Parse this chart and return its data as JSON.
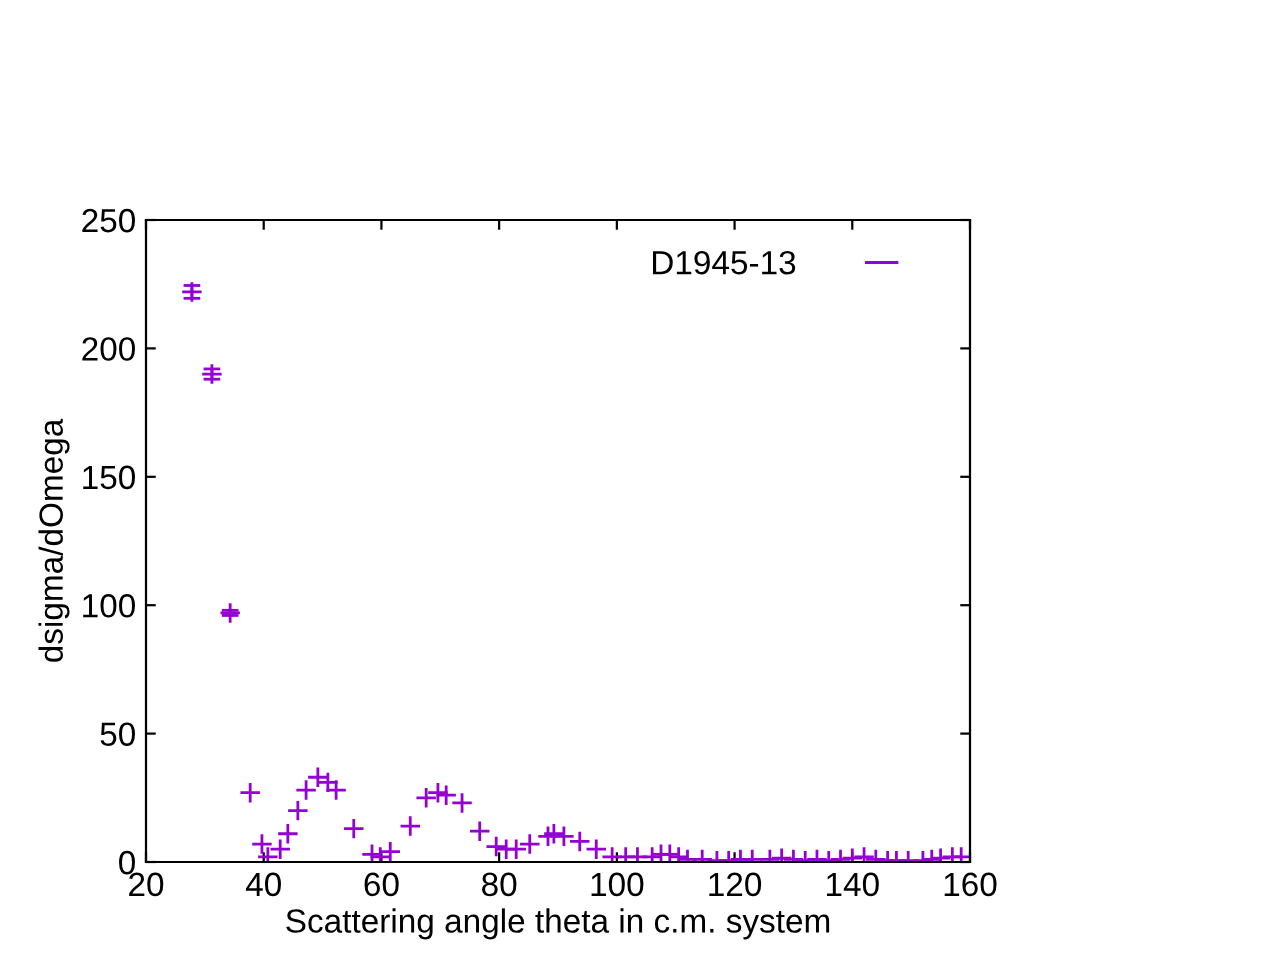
{
  "chart_data": {
    "type": "scatter",
    "xlabel": "Scattering angle theta in c.m. system",
    "ylabel": "dsigma/dOmega",
    "xlim": [
      20,
      160
    ],
    "ylim": [
      0,
      250
    ],
    "xticks": [
      20,
      40,
      60,
      80,
      100,
      120,
      140,
      160
    ],
    "yticks": [
      0,
      50,
      100,
      150,
      200,
      250
    ],
    "grid": false,
    "legend": "top right",
    "marker": "cross",
    "series": [
      {
        "name": "D1945-13",
        "color": "#9400d3",
        "x": [
          27.8,
          31.2,
          34.3,
          37.7,
          39.7,
          40.7,
          42.8,
          44.1,
          45.8,
          47.2,
          49.2,
          50.9,
          52.3,
          55.3,
          58.4,
          59.8,
          61.5,
          64.9,
          67.6,
          69.6,
          71.0,
          73.7,
          76.7,
          79.5,
          81.2,
          82.9,
          85.2,
          88.3,
          89.3,
          91.0,
          93.7,
          96.5,
          99.2,
          101.5,
          103.5,
          106,
          107.5,
          109,
          110.5,
          112,
          114.5,
          117,
          119,
          121,
          123,
          126,
          128,
          130,
          132,
          134,
          136,
          138,
          140,
          142,
          144,
          146,
          147.5,
          149.5,
          152,
          153.5,
          155,
          157,
          158.5
        ],
        "values": [
          222,
          190,
          97,
          27,
          7,
          2,
          5,
          11,
          20,
          28,
          33,
          31,
          28,
          13,
          3,
          2,
          4,
          14,
          25,
          27,
          26,
          23,
          12,
          6,
          5,
          5,
          7,
          10,
          11,
          10,
          8,
          5,
          2,
          2,
          2,
          2,
          3,
          3,
          2,
          1,
          1,
          0.5,
          0.5,
          1,
          1,
          1,
          1.5,
          1,
          0.5,
          1,
          0.5,
          1,
          1.5,
          2,
          1,
          0.5,
          0.5,
          0.5,
          0.5,
          1,
          1.5,
          2,
          2
        ],
        "errors": [
          2.5,
          2,
          1,
          null,
          null,
          null,
          null,
          null,
          null,
          null,
          null,
          null,
          null,
          null,
          null,
          null,
          null,
          null,
          null,
          null,
          null,
          null,
          null,
          null,
          null,
          null,
          null,
          null,
          null,
          null,
          null,
          null,
          null,
          null,
          null,
          null,
          null,
          null,
          null,
          null,
          null,
          null,
          null,
          null,
          null,
          null,
          null,
          null,
          null,
          null,
          null,
          null,
          null,
          null,
          null,
          null,
          null,
          null,
          null,
          null,
          null,
          null,
          null
        ]
      }
    ]
  }
}
